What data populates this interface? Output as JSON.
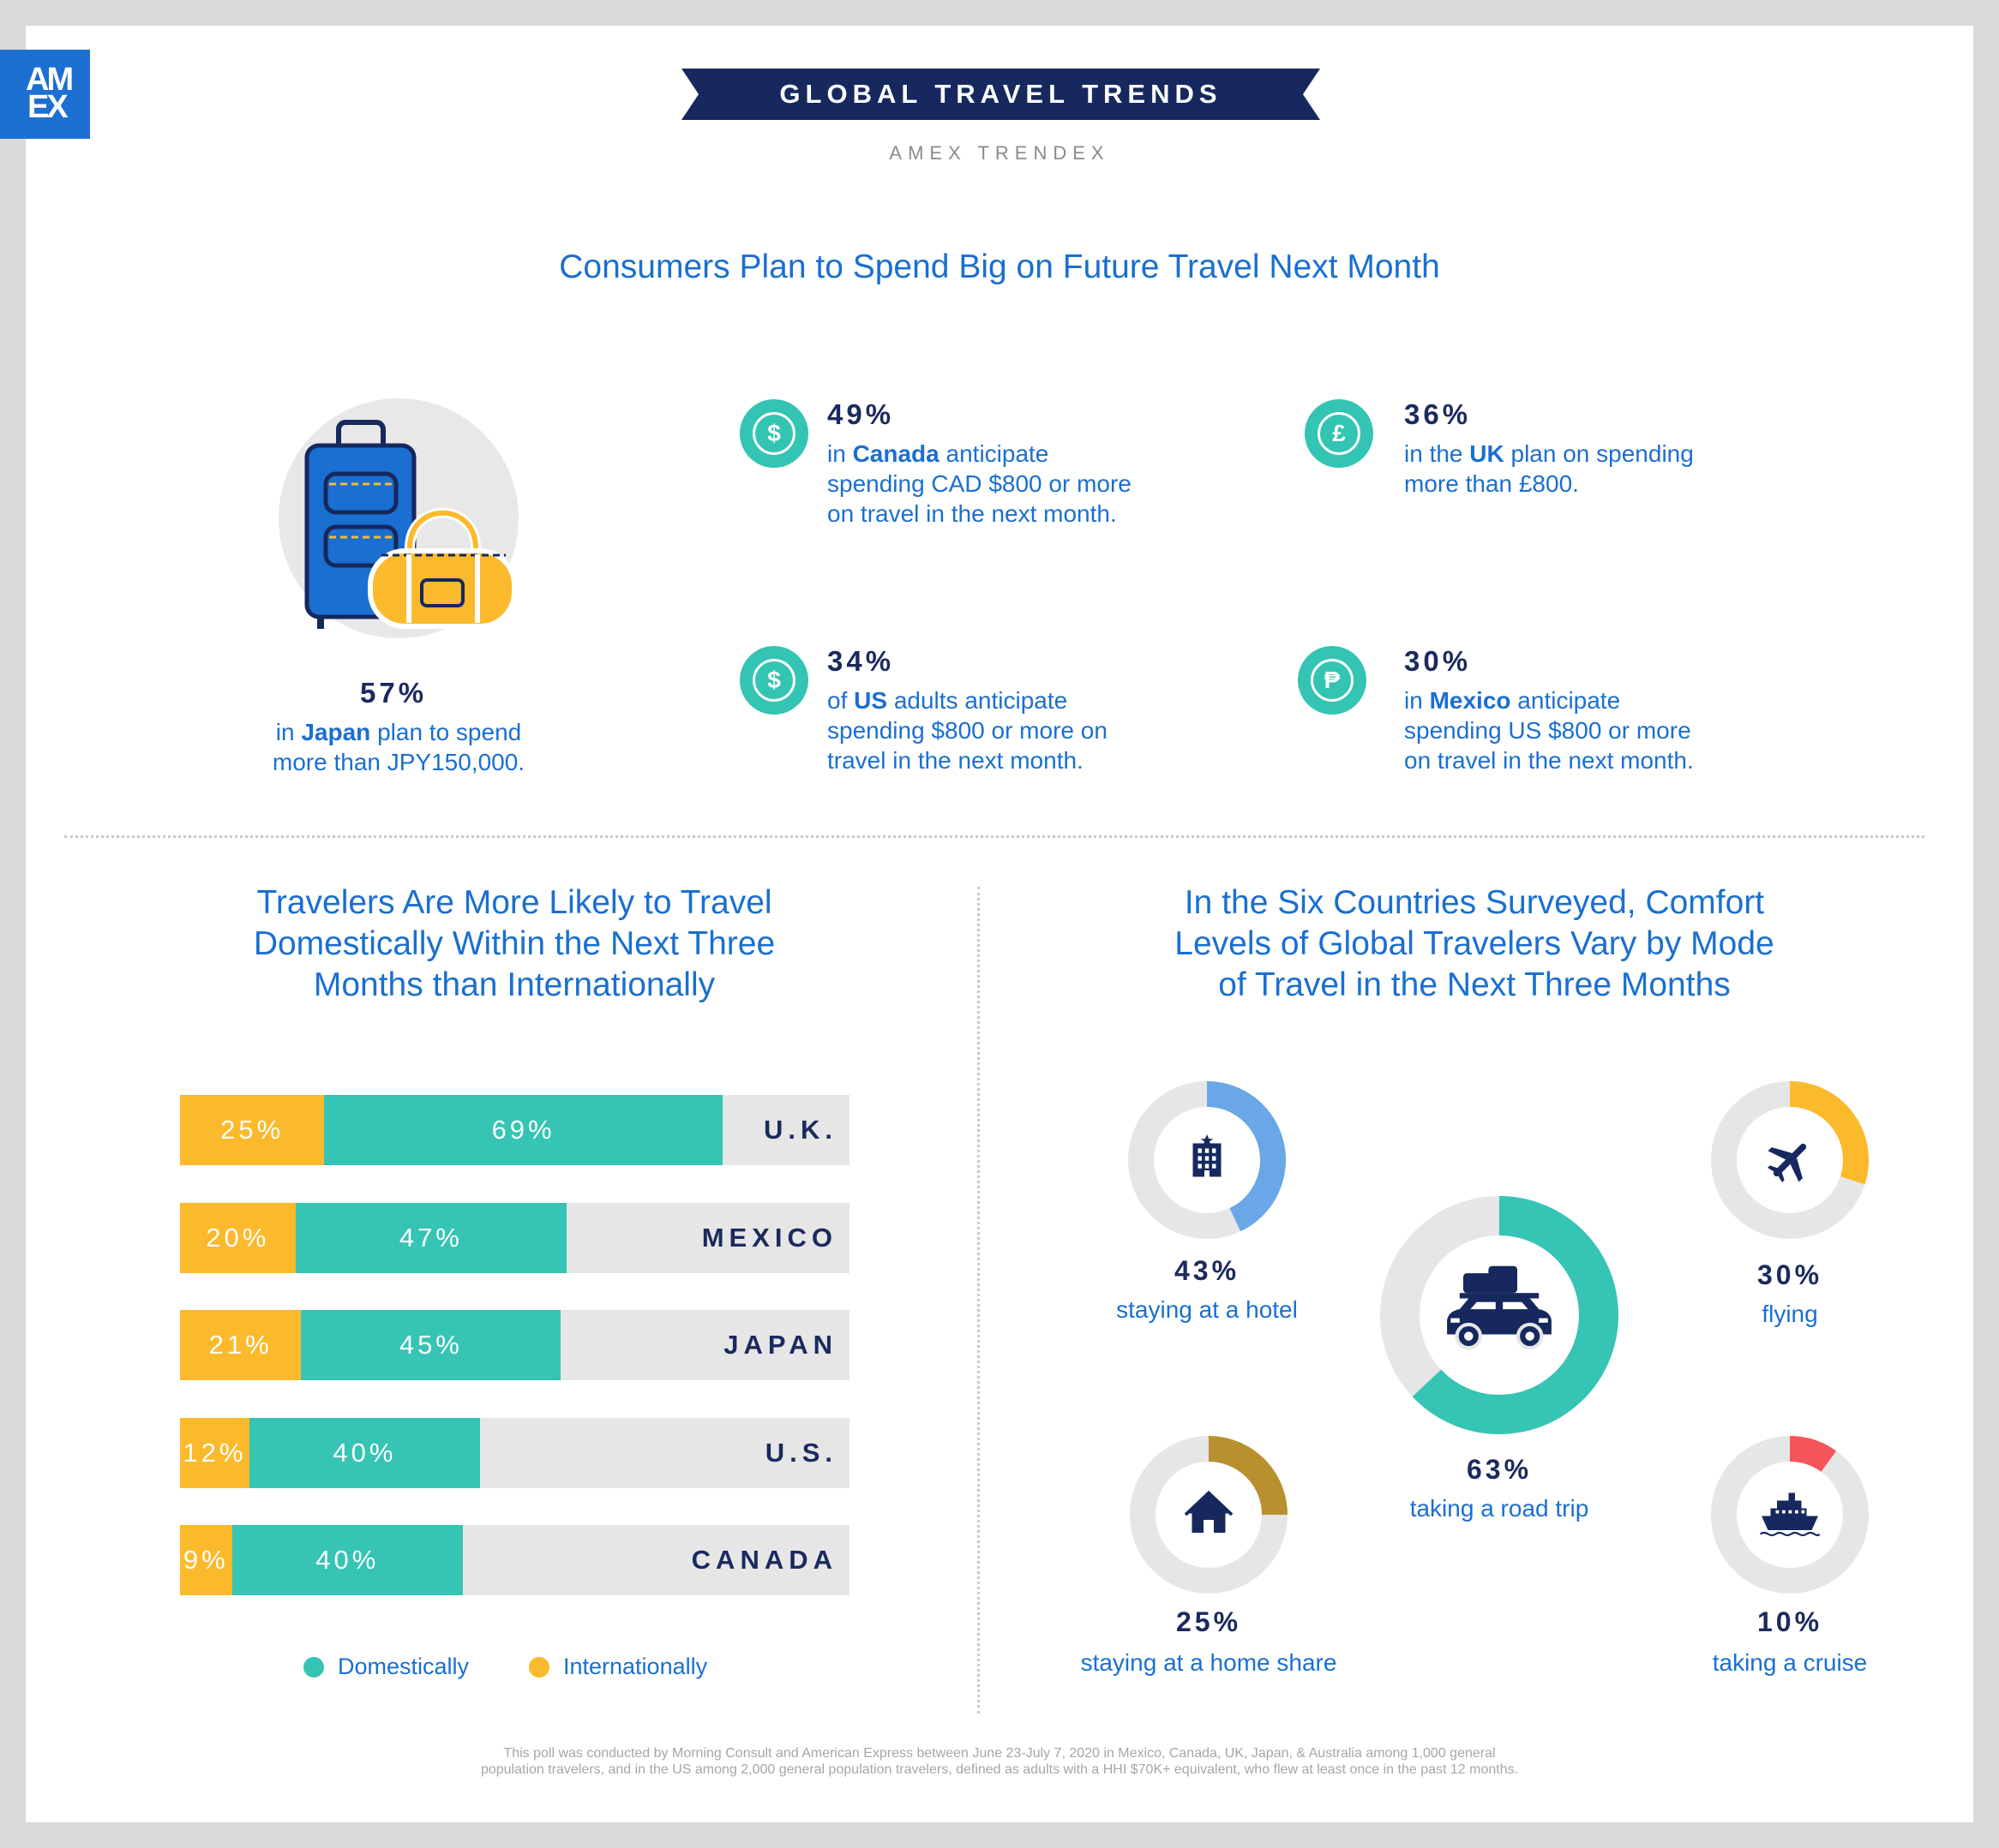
{
  "brand": {
    "logo_line1": "AM",
    "logo_line2": "EX"
  },
  "header": {
    "banner": "GLOBAL TRAVEL TRENDS",
    "subtitle": "AMEX TRENDEX"
  },
  "colors": {
    "blue": "#1a6fd0",
    "navy": "#16285e",
    "teal": "#36c4b4",
    "yellow": "#fbb92c",
    "hotel": "#6aa7e6",
    "homeshare": "#b8902e",
    "cruise": "#f5555a",
    "track": "#e6e6e6"
  },
  "section1": {
    "title": "Consumers Plan to Spend Big on Future Travel Next Month",
    "japan": {
      "pct": "57%",
      "pre": "in ",
      "country": "Japan",
      "post": " plan to spend",
      "line2": "more than JPY150,000."
    },
    "canada": {
      "icon": "dollar-icon",
      "symbol": "$",
      "pct": "49%",
      "pre": "in ",
      "country": "Canada",
      "post": " anticipate",
      "line2": "spending CAD $800 or more",
      "line3": "on travel in the next month."
    },
    "uk": {
      "icon": "pound-icon",
      "symbol": "£",
      "pct": "36%",
      "pre": "in the ",
      "country": "UK",
      "post": " plan on spending",
      "line2": "more than £800."
    },
    "us": {
      "icon": "dollar-icon",
      "symbol": "$",
      "pct": "34%",
      "pre": "of ",
      "country": "US",
      "post": " adults anticipate",
      "line2": "spending $800 or more on",
      "line3": "travel in the next month."
    },
    "mexico": {
      "icon": "peso-icon",
      "symbol": "₱",
      "pct": "30%",
      "pre": "in ",
      "country": "Mexico",
      "post": " anticipate",
      "line2": "spending US $800 or more",
      "line3": "on travel in the next month."
    }
  },
  "section2": {
    "title_l1": "Travelers Are More Likely to Travel",
    "title_l2": "Domestically Within the Next Three",
    "title_l3": "Months than Internationally",
    "legend": {
      "domestic": "Domestically",
      "international": "Internationally"
    }
  },
  "section3": {
    "title_l1": "In the Six Countries Surveyed, Comfort",
    "title_l2": "Levels of Global Travelers Vary by Mode",
    "title_l3": "of Travel in the Next Three Months"
  },
  "chart_data": [
    {
      "type": "bar",
      "orientation": "horizontal",
      "stacked": true,
      "categories": [
        "U.K.",
        "MEXICO",
        "JAPAN",
        "U.S.",
        "CANADA"
      ],
      "series": [
        {
          "name": "Internationally",
          "values": [
            25,
            20,
            21,
            12,
            9
          ],
          "labels": [
            "25%",
            "20%",
            "21%",
            "12%",
            "9%"
          ]
        },
        {
          "name": "Domestically",
          "values": [
            69,
            47,
            45,
            40,
            40
          ],
          "labels": [
            "69%",
            "47%",
            "45%",
            "40%",
            "40%"
          ]
        }
      ]
    },
    {
      "type": "pie",
      "style": "donut",
      "items": [
        {
          "label": "staying at a hotel",
          "value": 43,
          "pct": "43%",
          "icon": "hotel-icon",
          "color": "#6aa7e6"
        },
        {
          "label": "flying",
          "value": 30,
          "pct": "30%",
          "icon": "airplane-icon",
          "color": "#fbb92c"
        },
        {
          "label": "taking a road trip",
          "value": 63,
          "pct": "63%",
          "icon": "car-icon",
          "color": "#36c4b4"
        },
        {
          "label": "staying at a home share",
          "value": 25,
          "pct": "25%",
          "icon": "house-icon",
          "color": "#b8902e"
        },
        {
          "label": "taking a cruise",
          "value": 10,
          "pct": "10%",
          "icon": "ship-icon",
          "color": "#f5555a"
        }
      ]
    }
  ],
  "footnote": {
    "line1": "This poll was conducted by Morning Consult and American Express between June 23-July 7, 2020 in Mexico, Canada, UK, Japan, & Australia among 1,000 general",
    "line2": "population travelers, and in the US among 2,000 general population travelers, defined as adults with a HHI $70K+ equivalent, who flew at least once in the past 12 months."
  }
}
